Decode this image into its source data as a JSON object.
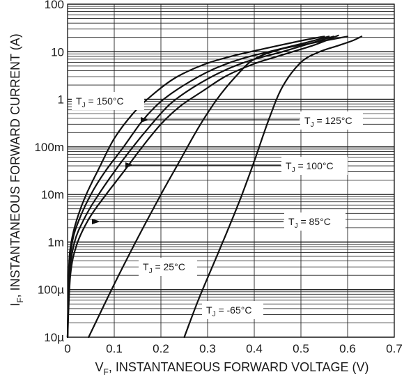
{
  "chart_data": {
    "type": "line",
    "xlabel": "V",
    "xlabel_sub": "F",
    "xlabel_rest": ", INSTANTANEOUS FORWARD VOLTAGE (V)",
    "ylabel": "I",
    "ylabel_sub": "F",
    "ylabel_rest": ", INSTANTANEOUS FORWARD CURRENT (A)",
    "x_scale": "linear",
    "y_scale": "log",
    "xlim": [
      0,
      0.7
    ],
    "ylim": [
      1e-05,
      100
    ],
    "grid": true,
    "x_ticks": [
      {
        "value": 0,
        "label": "0"
      },
      {
        "value": 0.1,
        "label": "0.1"
      },
      {
        "value": 0.2,
        "label": "0.2"
      },
      {
        "value": 0.3,
        "label": "0.3"
      },
      {
        "value": 0.4,
        "label": "0.4"
      },
      {
        "value": 0.5,
        "label": "0.5"
      },
      {
        "value": 0.6,
        "label": "0.6"
      },
      {
        "value": 0.7,
        "label": "0.7"
      }
    ],
    "y_ticks": [
      {
        "value": 100,
        "label": "100"
      },
      {
        "value": 10,
        "label": "10"
      },
      {
        "value": 1,
        "label": "1"
      },
      {
        "value": 0.1,
        "label": "100m"
      },
      {
        "value": 0.01,
        "label": "10m"
      },
      {
        "value": 0.001,
        "label": "1m"
      },
      {
        "value": 0.0001,
        "label": "100µ"
      },
      {
        "value": 1e-05,
        "label": "10µ"
      }
    ],
    "series": [
      {
        "name": "150°C",
        "x": [
          0,
          0.003,
          0.008,
          0.02,
          0.04,
          0.07,
          0.1,
          0.14,
          0.18,
          0.23,
          0.29,
          0.35,
          0.42,
          0.5,
          0.55
        ],
        "y": [
          1e-05,
          0.0003,
          0.001,
          0.003,
          0.01,
          0.04,
          0.15,
          0.5,
          1.2,
          2.8,
          5.3,
          8,
          11.5,
          17,
          21
        ]
      },
      {
        "name": "125°C",
        "x": [
          0,
          0.003,
          0.01,
          0.025,
          0.05,
          0.08,
          0.12,
          0.16,
          0.2,
          0.25,
          0.31,
          0.37,
          0.44,
          0.51,
          0.56
        ],
        "y": [
          1e-05,
          0.0002,
          0.001,
          0.003,
          0.01,
          0.03,
          0.1,
          0.35,
          0.9,
          2,
          4.2,
          7,
          10.5,
          15.5,
          21
        ]
      },
      {
        "name": "100°C",
        "x": [
          0,
          0.004,
          0.015,
          0.035,
          0.06,
          0.1,
          0.14,
          0.18,
          0.22,
          0.27,
          0.33,
          0.39,
          0.46,
          0.52,
          0.57
        ],
        "y": [
          1e-05,
          0.0002,
          0.001,
          0.003,
          0.008,
          0.03,
          0.1,
          0.3,
          0.8,
          1.8,
          3.8,
          6.5,
          10,
          15,
          21
        ]
      },
      {
        "name": "85°C",
        "x": [
          0,
          0.006,
          0.02,
          0.045,
          0.075,
          0.12,
          0.16,
          0.2,
          0.24,
          0.29,
          0.34,
          0.4,
          0.47,
          0.53,
          0.58
        ],
        "y": [
          1e-05,
          0.0002,
          0.0009,
          0.003,
          0.008,
          0.03,
          0.1,
          0.3,
          0.7,
          1.5,
          3.1,
          5.6,
          9.2,
          14,
          22
        ]
      },
      {
        "name": "25°C",
        "x": [
          0.045,
          0.1,
          0.15,
          0.2,
          0.24,
          0.28,
          0.32,
          0.36,
          0.4,
          0.46,
          0.52,
          0.57,
          0.6
        ],
        "y": [
          1e-05,
          0.00013,
          0.0012,
          0.01,
          0.05,
          0.25,
          1,
          3,
          7,
          11.5,
          15,
          18.5,
          21
        ]
      },
      {
        "name": "-65°C",
        "x": [
          0.25,
          0.28,
          0.31,
          0.34,
          0.37,
          0.4,
          0.43,
          0.46,
          0.5,
          0.54,
          0.58,
          0.61,
          0.63
        ],
        "y": [
          1e-05,
          6e-05,
          0.0003,
          0.0015,
          0.008,
          0.05,
          0.35,
          1.8,
          6,
          10,
          13.5,
          17,
          21
        ]
      }
    ],
    "annotations": [
      {
        "main": "T",
        "sub": "J",
        "text": " = 150°C"
      },
      {
        "main": "T",
        "sub": "J",
        "text": " = 125°C"
      },
      {
        "main": "T",
        "sub": "J",
        "text": " = 100°C"
      },
      {
        "main": "T",
        "sub": "J",
        "text": " = 85°C"
      },
      {
        "main": "T",
        "sub": "J",
        "text": " = 25°C"
      },
      {
        "main": "T",
        "sub": "J",
        "text": " = -65°C"
      }
    ]
  }
}
